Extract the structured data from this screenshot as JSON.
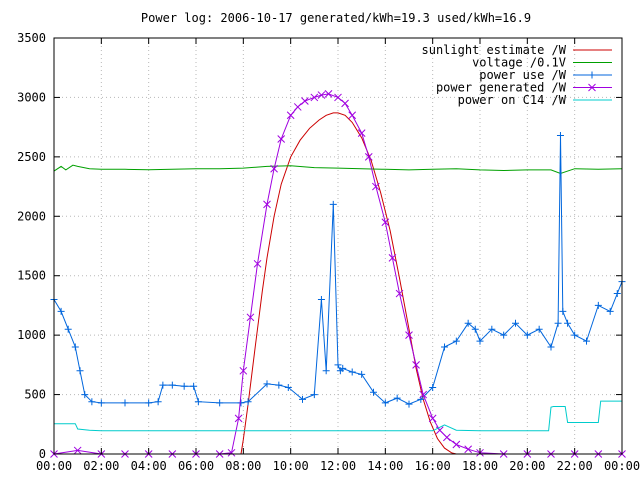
{
  "chart_data": {
    "type": "line",
    "title": "Power log: 2006-10-17 generated/kWh=19.3 used/kWh=16.9",
    "xlabel": "",
    "ylabel": "",
    "xlim": [
      0,
      24
    ],
    "ylim": [
      0,
      3500
    ],
    "x_ticks": [
      {
        "value": 0,
        "label": "00:00"
      },
      {
        "value": 2,
        "label": "02:00"
      },
      {
        "value": 4,
        "label": "04:00"
      },
      {
        "value": 6,
        "label": "06:00"
      },
      {
        "value": 8,
        "label": "08:00"
      },
      {
        "value": 10,
        "label": "10:00"
      },
      {
        "value": 12,
        "label": "12:00"
      },
      {
        "value": 14,
        "label": "14:00"
      },
      {
        "value": 16,
        "label": "16:00"
      },
      {
        "value": 18,
        "label": "18:00"
      },
      {
        "value": 20,
        "label": "20:00"
      },
      {
        "value": 22,
        "label": "22:00"
      },
      {
        "value": 24,
        "label": "00:00"
      }
    ],
    "y_ticks": [
      {
        "value": 0,
        "label": "0"
      },
      {
        "value": 500,
        "label": "500"
      },
      {
        "value": 1000,
        "label": "1000"
      },
      {
        "value": 1500,
        "label": "1500"
      },
      {
        "value": 2000,
        "label": "2000"
      },
      {
        "value": 2500,
        "label": "2500"
      },
      {
        "value": 3000,
        "label": "3000"
      },
      {
        "value": 3500,
        "label": "3500"
      }
    ],
    "grid": true,
    "legend_position": "top-right",
    "series": [
      {
        "name": "sunlight estimate /W",
        "color": "#cc0000",
        "style": "line",
        "x": [
          7.9,
          8.0,
          8.2,
          8.5,
          8.8,
          9.0,
          9.3,
          9.6,
          10.0,
          10.4,
          10.8,
          11.2,
          11.5,
          11.8,
          12.0,
          12.3,
          12.6,
          13.0,
          13.4,
          13.8,
          14.2,
          14.6,
          15.0,
          15.3,
          15.6,
          15.9,
          16.2,
          16.5,
          16.8,
          17.0
        ],
        "y": [
          0,
          120,
          420,
          900,
          1370,
          1650,
          2000,
          2270,
          2500,
          2640,
          2740,
          2810,
          2850,
          2870,
          2870,
          2850,
          2790,
          2660,
          2470,
          2200,
          1880,
          1480,
          1050,
          720,
          460,
          270,
          130,
          50,
          10,
          0
        ]
      },
      {
        "name": "voltage /0.1V",
        "color": "#00a000",
        "style": "line",
        "x": [
          0.0,
          0.3,
          0.5,
          0.8,
          1.0,
          1.5,
          2.0,
          3.0,
          4.0,
          5.0,
          6.0,
          7.0,
          8.0,
          9.0,
          10.0,
          11.0,
          12.0,
          13.0,
          14.0,
          15.0,
          16.0,
          17.0,
          18.0,
          19.0,
          20.0,
          21.0,
          21.4,
          22.0,
          23.0,
          24.0
        ],
        "y": [
          2380,
          2420,
          2390,
          2430,
          2420,
          2400,
          2395,
          2395,
          2392,
          2395,
          2400,
          2400,
          2405,
          2420,
          2425,
          2410,
          2405,
          2400,
          2395,
          2390,
          2395,
          2400,
          2390,
          2385,
          2390,
          2390,
          2360,
          2400,
          2395,
          2400
        ]
      },
      {
        "name": "power use /W",
        "color": "#0066dd",
        "style": "line+plus",
        "x": [
          0.0,
          0.3,
          0.6,
          0.9,
          1.1,
          1.3,
          1.6,
          2.0,
          3.0,
          4.0,
          4.4,
          4.6,
          5.0,
          5.5,
          5.9,
          6.1,
          7.0,
          7.9,
          8.2,
          9.0,
          9.5,
          9.9,
          10.5,
          11.0,
          11.3,
          11.5,
          11.8,
          12.0,
          12.1,
          12.2,
          12.6,
          13.0,
          13.5,
          14.0,
          14.5,
          15.0,
          15.5,
          16.0,
          16.5,
          17.0,
          17.5,
          17.8,
          18.0,
          18.5,
          19.0,
          19.5,
          20.0,
          20.5,
          21.0,
          21.3,
          21.4,
          21.5,
          21.7,
          22.0,
          22.5,
          23.0,
          23.5,
          23.8,
          24.0
        ],
        "y": [
          1300,
          1200,
          1050,
          900,
          700,
          500,
          440,
          430,
          430,
          430,
          440,
          580,
          580,
          570,
          570,
          440,
          430,
          430,
          440,
          590,
          580,
          560,
          460,
          500,
          1300,
          700,
          2100,
          750,
          700,
          720,
          690,
          670,
          520,
          430,
          470,
          420,
          460,
          560,
          900,
          950,
          1100,
          1050,
          950,
          1050,
          1000,
          1100,
          1000,
          1050,
          900,
          1100,
          2680,
          1200,
          1100,
          1000,
          950,
          1250,
          1200,
          1350,
          1450
        ]
      },
      {
        "name": "power generated /W",
        "color": "#a000e0",
        "style": "line+cross",
        "x": [
          0.0,
          1.0,
          2.0,
          3.0,
          4.0,
          5.0,
          6.0,
          7.0,
          7.5,
          7.8,
          8.0,
          8.3,
          8.6,
          9.0,
          9.3,
          9.6,
          10.0,
          10.3,
          10.6,
          11.0,
          11.3,
          11.6,
          12.0,
          12.3,
          12.6,
          13.0,
          13.3,
          13.6,
          14.0,
          14.3,
          14.6,
          15.0,
          15.3,
          15.6,
          16.0,
          16.3,
          16.6,
          17.0,
          17.5,
          18.0,
          19.0,
          20.0,
          21.0,
          22.0,
          23.0,
          24.0
        ],
        "y": [
          0,
          30,
          0,
          0,
          0,
          0,
          0,
          0,
          10,
          300,
          700,
          1150,
          1600,
          2100,
          2400,
          2650,
          2850,
          2920,
          2970,
          3000,
          3020,
          3030,
          3000,
          2950,
          2850,
          2700,
          2500,
          2250,
          1950,
          1650,
          1350,
          1000,
          750,
          500,
          300,
          200,
          140,
          80,
          40,
          10,
          0,
          0,
          0,
          0,
          0,
          0
        ]
      },
      {
        "name": "power on C14 /W",
        "color": "#00cccc",
        "style": "line",
        "x": [
          0.0,
          0.9,
          1.0,
          1.5,
          2.0,
          4.0,
          6.0,
          8.0,
          10.0,
          12.0,
          14.0,
          16.0,
          16.5,
          17.0,
          18.0,
          20.0,
          20.9,
          21.0,
          21.1,
          21.6,
          21.7,
          22.5,
          23.0,
          23.1,
          24.0
        ],
        "y": [
          255,
          255,
          210,
          200,
          195,
          195,
          195,
          195,
          195,
          195,
          195,
          195,
          245,
          200,
          195,
          195,
          195,
          395,
          400,
          400,
          265,
          265,
          265,
          445,
          445
        ]
      }
    ]
  }
}
